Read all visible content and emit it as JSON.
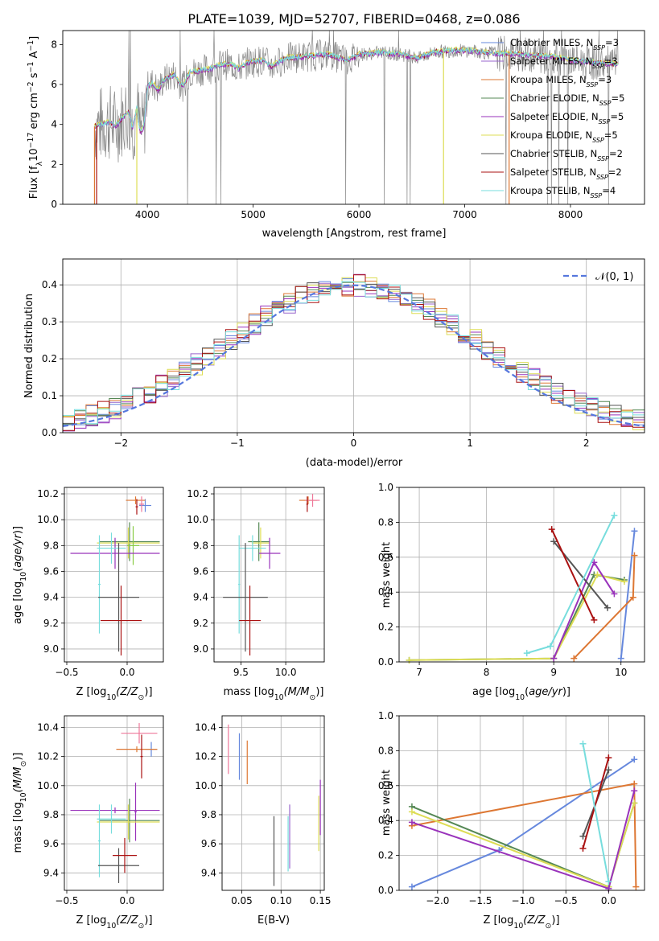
{
  "title": "PLATE=1039, MJD=52707, FIBERID=0468, z=0.086",
  "colors": [
    "#6688dd",
    "#9966cc",
    "#dd7733",
    "#558855",
    "#9933bb",
    "#dddd55",
    "#555555",
    "#aa1111",
    "#77dddd",
    "#888888",
    "#ee7799"
  ],
  "chart_data": [
    {
      "id": "spectrum",
      "type": "line",
      "xlabel": "wavelength [Angstrom, rest frame]",
      "ylabel": "Flux [f$_\\lambda$10$^{-17}$ erg cm$^{-2}$ s$^{-1}$ A$^{-1}$]",
      "xlim": [
        3200,
        8700
      ],
      "ylim": [
        0,
        8.7
      ],
      "xticks": [
        4000,
        5000,
        6000,
        7000,
        8000
      ],
      "yticks": [
        0,
        2,
        4,
        6,
        8
      ],
      "legend_loc": "right",
      "legend": [
        {
          "label": "Chabrier MILES, N",
          "sub": "SSP",
          "tail": "=3",
          "color": "#6688dd"
        },
        {
          "label": "Salpeter MILES, N",
          "sub": "SSP",
          "tail": "=3",
          "color": "#9966cc"
        },
        {
          "label": "Kroupa MILES, N",
          "sub": "SSP",
          "tail": "=3",
          "color": "#dd7733"
        },
        {
          "label": "Chabrier ELODIE, N",
          "sub": "SSP",
          "tail": "=5",
          "color": "#558855"
        },
        {
          "label": "Salpeter ELODIE, N",
          "sub": "SSP",
          "tail": "=5",
          "color": "#9933bb"
        },
        {
          "label": "Kroupa ELODIE, N",
          "sub": "SSP",
          "tail": "=5",
          "color": "#dddd55"
        },
        {
          "label": "Chabrier STELIB, N",
          "sub": "SSP",
          "tail": "=2",
          "color": "#555555"
        },
        {
          "label": "Salpeter STELIB, N",
          "sub": "SSP",
          "tail": "=2",
          "color": "#aa1111"
        },
        {
          "label": "Kroupa STELIB, N",
          "sub": "SSP",
          "tail": "=4",
          "color": "#77dddd"
        }
      ],
      "continuum": [
        [
          3500,
          3.9
        ],
        [
          3560,
          4.0
        ],
        [
          3650,
          4.1
        ],
        [
          3700,
          3.9
        ],
        [
          3760,
          4.3
        ],
        [
          3820,
          4.6
        ],
        [
          3860,
          3.8
        ],
        [
          3900,
          4.8
        ],
        [
          3933,
          3.6
        ],
        [
          3968,
          3.9
        ],
        [
          4000,
          5.9
        ],
        [
          4050,
          6.1
        ],
        [
          4102,
          5.7
        ],
        [
          4150,
          6.2
        ],
        [
          4250,
          6.5
        ],
        [
          4300,
          6.1
        ],
        [
          4340,
          5.9
        ],
        [
          4400,
          6.6
        ],
        [
          4500,
          6.7
        ],
        [
          4600,
          6.8
        ],
        [
          4700,
          7.0
        ],
        [
          4800,
          7.0
        ],
        [
          4861,
          6.8
        ],
        [
          4950,
          7.1
        ],
        [
          5100,
          7.2
        ],
        [
          5175,
          6.9
        ],
        [
          5300,
          7.3
        ],
        [
          5500,
          7.4
        ],
        [
          5700,
          7.5
        ],
        [
          5890,
          7.2
        ],
        [
          6000,
          7.5
        ],
        [
          6200,
          7.6
        ],
        [
          6400,
          7.5
        ],
        [
          6563,
          7.3
        ],
        [
          6700,
          7.6
        ],
        [
          6900,
          7.7
        ],
        [
          7000,
          7.7
        ],
        [
          7200,
          7.6
        ],
        [
          7500,
          7.5
        ],
        [
          7800,
          7.4
        ],
        [
          8000,
          7.2
        ],
        [
          8200,
          7.1
        ],
        [
          8450,
          7.0
        ]
      ],
      "model_cutoff": [
        {
          "at": 3500,
          "color": "#dd7733"
        },
        {
          "at": 3520,
          "color": "#aa1111"
        },
        {
          "at": 3900,
          "color": "#dddd55"
        },
        {
          "at": 6800,
          "color": "#dddd55"
        },
        {
          "at": 7420,
          "color": "#dd7733"
        }
      ]
    },
    {
      "id": "residuals",
      "type": "line",
      "xlabel": "(data-model)/error",
      "ylabel": "Normed distribution",
      "xlim": [
        -2.5,
        2.5
      ],
      "ylim": [
        0,
        0.47
      ],
      "xticks": [
        -2,
        -1,
        0,
        1,
        2
      ],
      "yticks": [
        0.0,
        0.1,
        0.2,
        0.3,
        0.4
      ],
      "legend_loc": "upper right",
      "reference": {
        "name": "𝒩(0, 1)",
        "mean": 0,
        "std": 1,
        "color": "#5577dd"
      },
      "bin_width": 0.1
    },
    {
      "id": "z-age",
      "type": "scatter",
      "xlabel_pre": "Z [log",
      "xlabel_post": "(Z/Z",
      "xlabel_end": ")]",
      "ylabel": "age  [log10(age/yr)]",
      "xlim": [
        -0.52,
        0.3
      ],
      "ylim": [
        8.9,
        10.25
      ],
      "xticks": [
        -0.5,
        0.0
      ],
      "yticks": [
        9.0,
        9.2,
        9.4,
        9.6,
        9.8,
        10.0,
        10.2
      ],
      "crosses": [
        {
          "x": 0.15,
          "y": 10.11,
          "xerr": 0.05,
          "yerr": 0.05,
          "color": "#6688dd"
        },
        {
          "x": 0.07,
          "y": 10.15,
          "xerr": 0.08,
          "yerr": 0.03,
          "color": "#dd7733"
        },
        {
          "x": 0.12,
          "y": 10.12,
          "xerr": 0.02,
          "yerr": 0.06,
          "color": "#ee7799"
        },
        {
          "x": 0.08,
          "y": 10.1,
          "xerr": 0.01,
          "yerr": 0.06,
          "color": "#aa1111"
        },
        {
          "x": 0.02,
          "y": 9.83,
          "xerr": 0.25,
          "yerr": 0.15,
          "color": "#558855"
        },
        {
          "x": 0.01,
          "y": 9.82,
          "xerr": 0.26,
          "yerr": 0.12,
          "color": "#dddd55"
        },
        {
          "x": 0.05,
          "y": 9.8,
          "xerr": 0.05,
          "yerr": 0.15,
          "color": "#88cc44"
        },
        {
          "x": -0.1,
          "y": 9.74,
          "xerr": 0.37,
          "yerr": 0.12,
          "color": "#9933bb"
        },
        {
          "x": -0.13,
          "y": 9.78,
          "xerr": 0.12,
          "yerr": 0.12,
          "color": "#77dddd"
        },
        {
          "x": -0.23,
          "y": 9.5,
          "xerr": 0.01,
          "yerr": 0.38,
          "color": "#77dddd"
        },
        {
          "x": -0.07,
          "y": 9.4,
          "xerr": 0.17,
          "yerr": 0.42,
          "color": "#555555"
        },
        {
          "x": -0.05,
          "y": 9.22,
          "xerr": 0.17,
          "yerr": 0.27,
          "color": "#aa1111"
        }
      ]
    },
    {
      "id": "mass-age",
      "type": "scatter",
      "xlabel_pre": "mass [log",
      "xlabel_post": "(M/M",
      "xlabel_end": ")]",
      "xlim": [
        9.2,
        10.43
      ],
      "ylim": [
        8.9,
        10.25
      ],
      "xticks": [
        9.5,
        10.0
      ],
      "yticks": [
        9.0,
        9.2,
        9.4,
        9.6,
        9.8,
        10.0,
        10.2
      ],
      "crosses": [
        {
          "x": 10.25,
          "y": 10.15,
          "xerr": 0.1,
          "yerr": 0.03,
          "color": "#dd7733"
        },
        {
          "x": 10.3,
          "y": 10.15,
          "xerr": 0.08,
          "yerr": 0.05,
          "color": "#ee7799"
        },
        {
          "x": 10.24,
          "y": 10.12,
          "xerr": 0.01,
          "yerr": 0.06,
          "color": "#aa1111"
        },
        {
          "x": 9.7,
          "y": 9.83,
          "xerr": 0.12,
          "yerr": 0.15,
          "color": "#558855"
        },
        {
          "x": 9.72,
          "y": 9.82,
          "xerr": 0.1,
          "yerr": 0.12,
          "color": "#dddd55"
        },
        {
          "x": 9.82,
          "y": 9.74,
          "xerr": 0.12,
          "yerr": 0.12,
          "color": "#9933bb"
        },
        {
          "x": 9.63,
          "y": 9.78,
          "xerr": 0.15,
          "yerr": 0.1,
          "color": "#77dddd"
        },
        {
          "x": 9.48,
          "y": 9.5,
          "xerr": 0.01,
          "yerr": 0.38,
          "color": "#77dddd"
        },
        {
          "x": 9.55,
          "y": 9.4,
          "xerr": 0.25,
          "yerr": 0.42,
          "color": "#555555"
        },
        {
          "x": 9.6,
          "y": 9.22,
          "xerr": 0.12,
          "yerr": 0.27,
          "color": "#aa1111"
        }
      ]
    },
    {
      "id": "age-weight",
      "type": "line",
      "xlabel": "age  [log10(age/yr)]",
      "ylabel": "mass weight",
      "xlim": [
        6.7,
        10.35
      ],
      "ylim": [
        0,
        1.0
      ],
      "xticks": [
        7,
        8,
        9,
        10
      ],
      "yticks": [
        0.0,
        0.2,
        0.4,
        0.6,
        0.8,
        1.0
      ],
      "series": [
        {
          "color": "#6688dd",
          "points": [
            [
              10.0,
              0.02
            ],
            [
              10.2,
              0.75
            ]
          ]
        },
        {
          "color": "#dd7733",
          "points": [
            [
              9.3,
              0.02
            ],
            [
              10.18,
              0.37
            ],
            [
              10.2,
              0.61
            ]
          ]
        },
        {
          "color": "#558855",
          "points": [
            [
              6.85,
              0.01
            ],
            [
              9.0,
              0.02
            ],
            [
              9.6,
              0.5
            ],
            [
              10.05,
              0.47
            ]
          ]
        },
        {
          "color": "#dddd55",
          "points": [
            [
              6.85,
              0.01
            ],
            [
              9.0,
              0.02
            ],
            [
              9.65,
              0.5
            ],
            [
              10.05,
              0.46
            ]
          ]
        },
        {
          "color": "#9933bb",
          "points": [
            [
              9.0,
              0.02
            ],
            [
              9.6,
              0.57
            ],
            [
              9.9,
              0.39
            ]
          ]
        },
        {
          "color": "#555555",
          "points": [
            [
              9.0,
              0.69
            ],
            [
              9.8,
              0.31
            ]
          ]
        },
        {
          "color": "#aa1111",
          "points": [
            [
              8.97,
              0.76
            ],
            [
              9.6,
              0.24
            ]
          ]
        },
        {
          "color": "#77dddd",
          "points": [
            [
              8.6,
              0.05
            ],
            [
              8.95,
              0.09
            ],
            [
              9.9,
              0.84
            ]
          ]
        }
      ]
    },
    {
      "id": "z-mass",
      "type": "scatter",
      "xlabel_pre": "Z [log",
      "xlabel_post": "(Z/Z",
      "xlabel_end": ")]",
      "ylabel_pre": "mass [log",
      "ylabel_post": "(M/M",
      "ylabel_end": ")]",
      "xlim": [
        -0.52,
        0.3
      ],
      "ylim": [
        9.28,
        10.48
      ],
      "xticks": [
        -0.5,
        0.0
      ],
      "yticks": [
        9.4,
        9.6,
        9.8,
        10.0,
        10.2,
        10.4
      ],
      "crosses": [
        {
          "x": 0.1,
          "y": 10.36,
          "xerr": 0.15,
          "yerr": 0.07,
          "color": "#ee7799"
        },
        {
          "x": 0.2,
          "y": 10.25,
          "xerr": 0.05,
          "yerr": 0.05,
          "color": "#6688dd"
        },
        {
          "x": 0.08,
          "y": 10.25,
          "xerr": 0.17,
          "yerr": 0.02,
          "color": "#dd7733"
        },
        {
          "x": 0.12,
          "y": 10.2,
          "xerr": 0.01,
          "yerr": 0.15,
          "color": "#aa1111"
        },
        {
          "x": 0.07,
          "y": 9.82,
          "xerr": 0.01,
          "yerr": 0.2,
          "color": "#9933bb"
        },
        {
          "x": -0.1,
          "y": 9.83,
          "xerr": 0.37,
          "yerr": 0.02,
          "color": "#9933bb"
        },
        {
          "x": 0.02,
          "y": 9.76,
          "xerr": 0.25,
          "yerr": 0.15,
          "color": "#558855"
        },
        {
          "x": 0.01,
          "y": 9.75,
          "xerr": 0.26,
          "yerr": 0.12,
          "color": "#dddd55"
        },
        {
          "x": -0.13,
          "y": 9.77,
          "xerr": 0.12,
          "yerr": 0.1,
          "color": "#77dddd"
        },
        {
          "x": -0.23,
          "y": 9.62,
          "xerr": 0.01,
          "yerr": 0.25,
          "color": "#77dddd"
        },
        {
          "x": -0.07,
          "y": 9.45,
          "xerr": 0.17,
          "yerr": 0.12,
          "color": "#555555"
        },
        {
          "x": -0.02,
          "y": 9.52,
          "xerr": 0.1,
          "yerr": 0.12,
          "color": "#aa1111"
        }
      ]
    },
    {
      "id": "ebv-mass",
      "type": "scatter",
      "xlabel": "E(B-V)",
      "xlim": [
        0.025,
        0.155
      ],
      "ylim": [
        9.28,
        10.48
      ],
      "xticks": [
        0.05,
        0.1,
        0.15
      ],
      "yticks": [
        9.4,
        9.6,
        9.8,
        10.0,
        10.2,
        10.4
      ],
      "crosses": [
        {
          "x": 0.033,
          "y": 10.25,
          "yerr": 0.17,
          "color": "#ee7799"
        },
        {
          "x": 0.047,
          "y": 10.2,
          "yerr": 0.16,
          "color": "#6688dd"
        },
        {
          "x": 0.057,
          "y": 10.16,
          "yerr": 0.15,
          "color": "#dd7733"
        },
        {
          "x": 0.091,
          "y": 9.55,
          "yerr": 0.24,
          "color": "#555555"
        },
        {
          "x": 0.109,
          "y": 9.6,
          "yerr": 0.19,
          "color": "#77dddd"
        },
        {
          "x": 0.111,
          "y": 9.65,
          "yerr": 0.22,
          "color": "#9966cc"
        },
        {
          "x": 0.148,
          "y": 9.74,
          "yerr": 0.19,
          "color": "#dddd55"
        },
        {
          "x": 0.15,
          "y": 9.85,
          "yerr": 0.19,
          "color": "#9933bb"
        }
      ]
    },
    {
      "id": "z-weight",
      "type": "line",
      "xlabel_pre": "Z [log",
      "xlabel_post": "(Z/Z",
      "xlabel_end": ")]",
      "ylabel": "mass weight",
      "xlim": [
        -2.45,
        0.42
      ],
      "ylim": [
        0,
        1.0
      ],
      "xticks": [
        -2.0,
        -1.5,
        -1.0,
        -0.5,
        0.0
      ],
      "xtick_labels": [
        "−2.0",
        "−1.5",
        "−1.0",
        "−0.5",
        "0.0"
      ],
      "yticks": [
        0.0,
        0.2,
        0.4,
        0.6,
        0.8,
        1.0
      ],
      "series": [
        {
          "color": "#6688dd",
          "points": [
            [
              -2.3,
              0.02
            ],
            [
              -1.28,
              0.23
            ],
            [
              0.3,
              0.75
            ]
          ]
        },
        {
          "color": "#dd7733",
          "points": [
            [
              -2.3,
              0.37
            ],
            [
              0.3,
              0.61
            ],
            [
              0.32,
              0.02
            ]
          ]
        },
        {
          "color": "#558855",
          "points": [
            [
              -2.3,
              0.48
            ],
            [
              0.0,
              0.02
            ],
            [
              0.3,
              0.5
            ]
          ]
        },
        {
          "color": "#dddd55",
          "points": [
            [
              -2.3,
              0.45
            ],
            [
              0.0,
              0.02
            ],
            [
              0.3,
              0.5
            ]
          ]
        },
        {
          "color": "#9933bb",
          "points": [
            [
              -2.3,
              0.39
            ],
            [
              0.0,
              0.01
            ],
            [
              0.3,
              0.57
            ]
          ]
        },
        {
          "color": "#555555",
          "points": [
            [
              -0.3,
              0.31
            ],
            [
              0.0,
              0.69
            ]
          ]
        },
        {
          "color": "#aa1111",
          "points": [
            [
              -0.3,
              0.24
            ],
            [
              0.0,
              0.76
            ]
          ]
        },
        {
          "color": "#77dddd",
          "points": [
            [
              -0.3,
              0.84
            ],
            [
              0.0,
              0.05
            ]
          ]
        }
      ]
    }
  ]
}
